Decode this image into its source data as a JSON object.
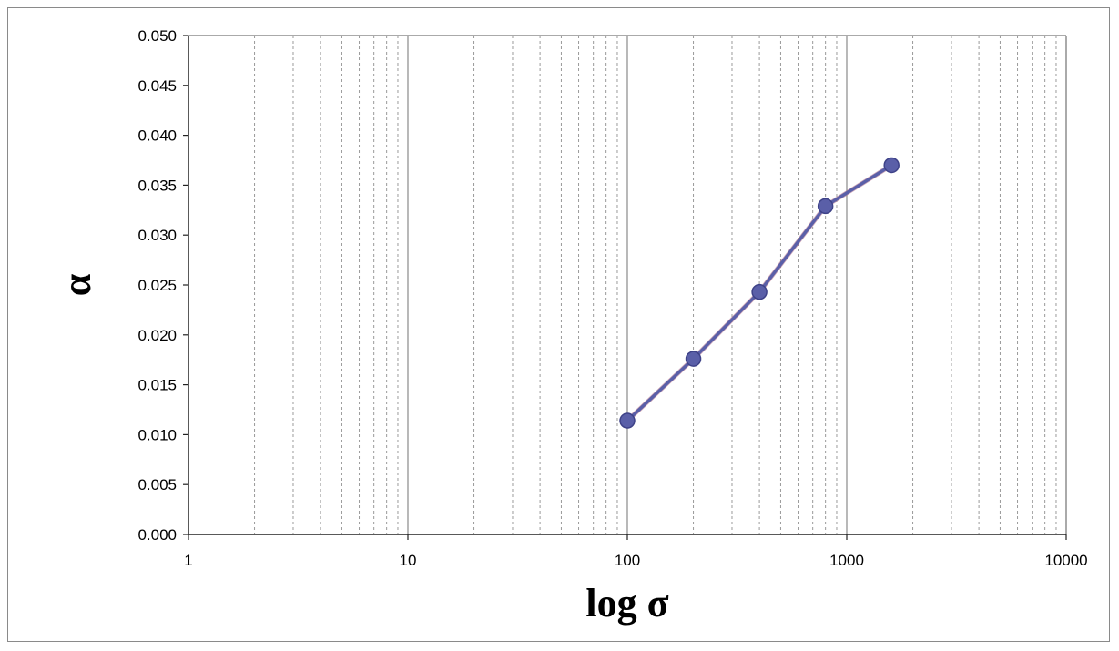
{
  "chart_data": {
    "type": "line",
    "title": "",
    "xlabel": "log σ",
    "ylabel": "α",
    "x_scale": "log",
    "xlim": [
      1,
      10000
    ],
    "ylim": [
      0,
      0.05
    ],
    "x_ticks": [
      "1",
      "10",
      "100",
      "1000",
      "10000"
    ],
    "y_ticks": [
      "0.000",
      "0.005",
      "0.010",
      "0.015",
      "0.020",
      "0.025",
      "0.030",
      "0.035",
      "0.040",
      "0.045",
      "0.050"
    ],
    "grid": {
      "x_major": true,
      "x_minor": true,
      "y": false
    },
    "series": [
      {
        "x": [
          100,
          200,
          400,
          800,
          1600
        ],
        "y": [
          0.0114,
          0.0176,
          0.0243,
          0.0329,
          0.037
        ],
        "color": "#5a5fa8"
      }
    ]
  }
}
